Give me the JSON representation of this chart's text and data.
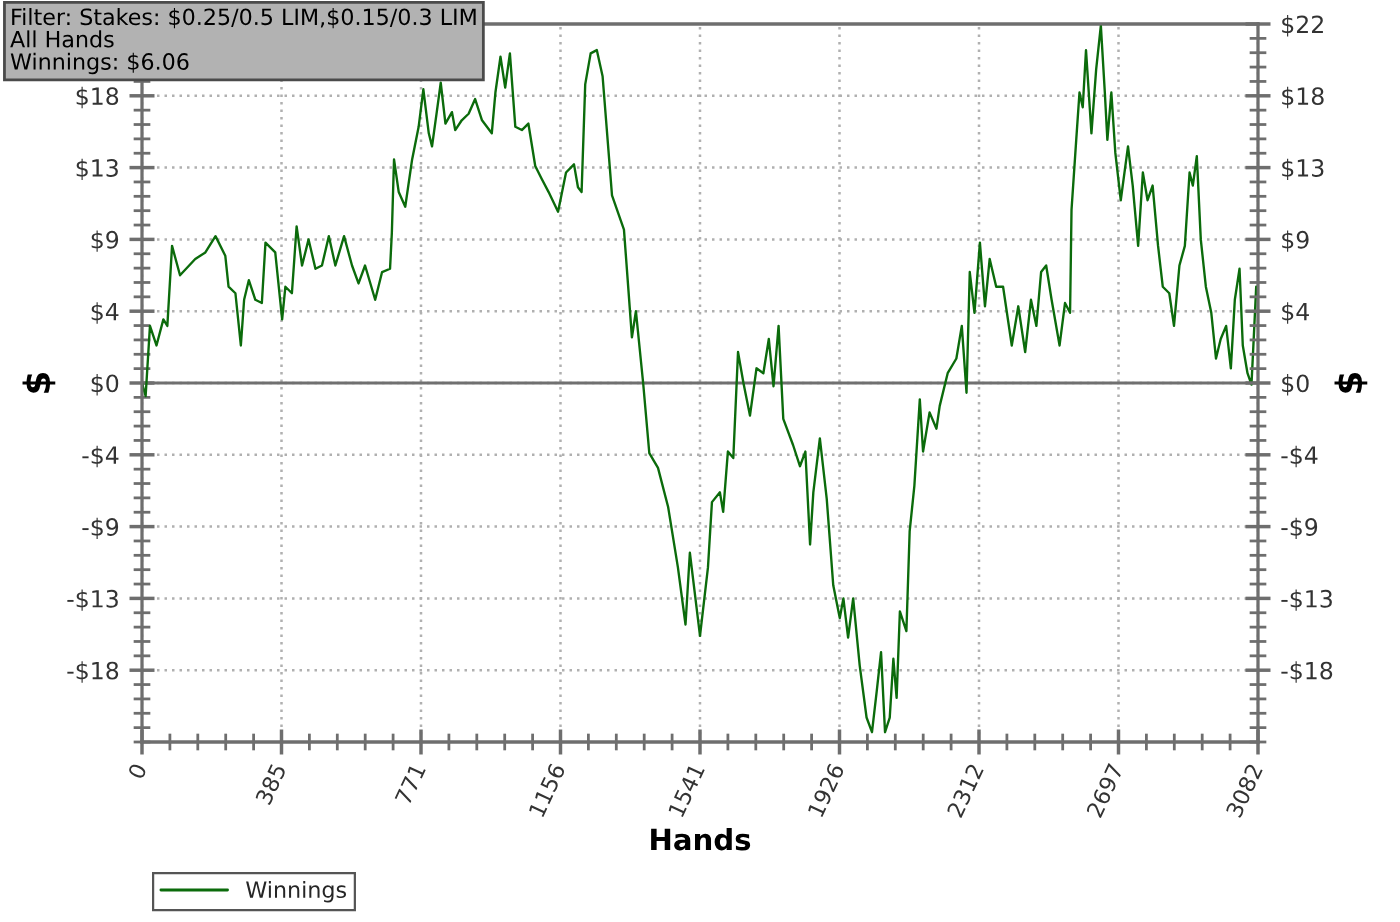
{
  "chart_data": {
    "type": "line",
    "title": "Filter: Stakes: $0.25/0.5 LIM,$0.15/0.3 LIM",
    "subtitle": "All Hands",
    "annotations": [
      "Winnings: $6.06"
    ],
    "xlabel": "Hands",
    "ylabel": "$",
    "y2label": "$",
    "series": [
      {
        "name": "Winnings",
        "color": "#0b6b0b",
        "x": [
          0,
          10,
          22,
          40,
          59,
          70,
          83,
          105,
          147,
          175,
          203,
          230,
          239,
          258,
          273,
          282,
          295,
          313,
          331,
          341,
          368,
          387,
          396,
          414,
          427,
          442,
          460,
          479,
          497,
          516,
          534,
          558,
          580,
          598,
          616,
          644,
          663,
          685,
          690,
          696,
          709,
          727,
          746,
          764,
          777,
          792,
          801,
          814,
          825,
          838,
          856,
          865,
          883,
          902,
          920,
          939,
          966,
          976,
          990,
          1003,
          1016,
          1031,
          1049,
          1067,
          1086,
          1104,
          1123,
          1149,
          1171,
          1193,
          1204,
          1214,
          1224,
          1239,
          1256,
          1272,
          1298,
          1331,
          1353,
          1364,
          1384,
          1401,
          1425,
          1453,
          1480,
          1501,
          1513,
          1541,
          1563,
          1574,
          1596,
          1605,
          1618,
          1633,
          1646,
          1661,
          1679,
          1697,
          1716,
          1731,
          1744,
          1758,
          1771,
          1798,
          1817,
          1832,
          1845,
          1854,
          1872,
          1891,
          1909,
          1927,
          1937,
          1950,
          1964,
          1982,
          2001,
          2016,
          2029,
          2041,
          2052,
          2065,
          2075,
          2084,
          2093,
          2111,
          2120,
          2133,
          2148,
          2157,
          2175,
          2194,
          2203,
          2225,
          2249,
          2264,
          2277,
          2286,
          2299,
          2314,
          2328,
          2341,
          2359,
          2378,
          2402,
          2420,
          2439,
          2455,
          2470,
          2483,
          2497,
          2512,
          2534,
          2549,
          2563,
          2567,
          2580,
          2589,
          2598,
          2607,
          2622,
          2635,
          2648,
          2659,
          2666,
          2677,
          2688,
          2703,
          2723,
          2736,
          2751,
          2764,
          2777,
          2791,
          2806,
          2819,
          2837,
          2850,
          2865,
          2880,
          2893,
          2902,
          2913,
          2924,
          2938,
          2953,
          2966,
          2979,
          2994,
          3007,
          3018,
          3031,
          3040,
          3053,
          3064,
          3071,
          3077
        ],
        "values": [
          0,
          -0.8,
          3.5,
          2.3,
          3.9,
          3.5,
          8.4,
          6.6,
          7.6,
          8.0,
          9.0,
          7.8,
          5.9,
          5.5,
          2.3,
          5.1,
          6.3,
          5.1,
          4.9,
          8.6,
          8.0,
          3.9,
          5.9,
          5.5,
          9.6,
          7.2,
          8.8,
          7.0,
          7.2,
          9.0,
          7.2,
          9.0,
          7.2,
          6.1,
          7.2,
          5.1,
          6.8,
          7.0,
          9.2,
          13.7,
          11.7,
          10.8,
          13.7,
          15.7,
          18.0,
          15.3,
          14.5,
          16.6,
          18.4,
          15.9,
          16.6,
          15.5,
          16.1,
          16.5,
          17.4,
          16.1,
          15.3,
          17.8,
          20.0,
          18.1,
          20.2,
          15.7,
          15.5,
          15.9,
          13.3,
          12.5,
          11.7,
          10.5,
          12.9,
          13.4,
          12.0,
          11.7,
          18.3,
          20.2,
          20.4,
          18.8,
          11.5,
          9.4,
          2.8,
          4.4,
          0.0,
          -4.3,
          -5.2,
          -7.6,
          -11.3,
          -14.8,
          -10.4,
          -15.5,
          -11.3,
          -7.3,
          -6.7,
          -7.9,
          -4.2,
          -4.6,
          1.9,
          0.0,
          -2.0,
          0.9,
          0.6,
          2.7,
          -0.2,
          3.5,
          -2.2,
          -3.8,
          -5.1,
          -4.2,
          -9.9,
          -6.7,
          -3.4,
          -7.1,
          -12.4,
          -14.4,
          -13.2,
          -15.6,
          -13.2,
          -17.3,
          -20.5,
          -21.4,
          -18.9,
          -16.5,
          -21.4,
          -20.5,
          -16.9,
          -19.3,
          -14.0,
          -15.2,
          -9.1,
          -6.3,
          -1.0,
          -4.2,
          -1.8,
          -2.8,
          -1.4,
          0.6,
          1.5,
          3.5,
          -0.6,
          6.8,
          4.3,
          8.6,
          4.7,
          7.6,
          5.9,
          5.9,
          2.3,
          4.7,
          1.9,
          5.1,
          3.5,
          6.8,
          7.2,
          5.1,
          2.3,
          4.9,
          4.3,
          10.6,
          14.9,
          17.8,
          16.9,
          20.4,
          15.3,
          19.2,
          21.9,
          17.8,
          14.9,
          17.8,
          14.1,
          11.2,
          14.5,
          12.1,
          8.4,
          12.9,
          11.2,
          12.1,
          8.4,
          5.9,
          5.5,
          3.5,
          7.2,
          8.4,
          12.9,
          12.1,
          13.9,
          8.8,
          5.9,
          4.3,
          1.5,
          2.7,
          3.5,
          0.9,
          5.1,
          7.0,
          2.3,
          0.6,
          -0.1,
          3.1,
          5.9
        ]
      }
    ],
    "xlim": [
      0,
      3082
    ],
    "xticks": [
      0,
      {
        "value": 385.25,
        "label": "385"
      },
      {
        "value": 770.5,
        "label": "771"
      },
      {
        "value": 1155.75,
        "label": "1156"
      },
      {
        "value": 1541,
        "label": "1541"
      },
      {
        "value": 1926.25,
        "label": "1926"
      },
      {
        "value": 2311.5,
        "label": "2312"
      },
      {
        "value": 2696.75,
        "label": "2697"
      },
      3082
    ],
    "ylim": [
      -22,
      22
    ],
    "yticks": [
      {
        "value": -17.6,
        "label": "-$18"
      },
      {
        "value": -13.2,
        "label": "-$13"
      },
      {
        "value": -8.8,
        "label": "-$9"
      },
      {
        "value": -4.4,
        "label": "-$4"
      },
      {
        "value": 0,
        "label": "$0"
      },
      {
        "value": 4.4,
        "label": "$4"
      },
      {
        "value": 8.8,
        "label": "$9"
      },
      {
        "value": 13.2,
        "label": "$13"
      },
      {
        "value": 17.6,
        "label": "$18"
      }
    ],
    "y2lim": [
      -22,
      22
    ],
    "y2ticks": [
      {
        "value": -17.6,
        "label": "-$18"
      },
      {
        "value": -13.2,
        "label": "-$13"
      },
      {
        "value": -8.8,
        "label": "-$9"
      },
      {
        "value": -4.4,
        "label": "-$4"
      },
      {
        "value": 0,
        "label": "$0"
      },
      {
        "value": 4.4,
        "label": "$4"
      },
      {
        "value": 8.8,
        "label": "$9"
      },
      {
        "value": 13.2,
        "label": "$13"
      },
      {
        "value": 17.6,
        "label": "$18"
      },
      {
        "value": 22,
        "label": "$22"
      }
    ],
    "ref_lines": [
      {
        "axis": "y",
        "value": 0,
        "color": "#707070"
      }
    ],
    "grid": true,
    "legend": "bottom left"
  }
}
